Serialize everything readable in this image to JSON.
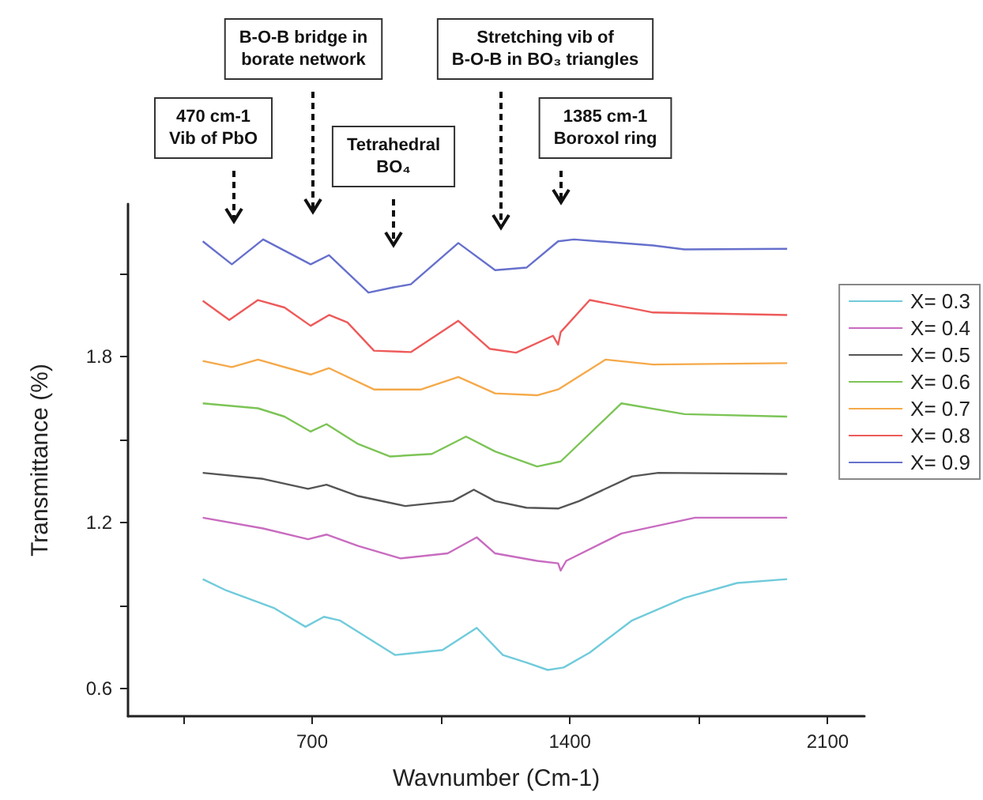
{
  "chart_data": {
    "type": "line",
    "xlabel": "Wavnumber (Cm-1)",
    "ylabel": "Transmittance (%)",
    "xlim": [
      200,
      2200
    ],
    "xticks": [
      {
        "value": 350,
        "label": null
      },
      700,
      {
        "value": 1050,
        "label": null
      },
      1400,
      {
        "value": 1750,
        "label": null
      },
      2100
    ],
    "ylim": [
      0.5,
      2.35
    ],
    "yticks": [
      0.6,
      {
        "value": 0.9,
        "label": null
      },
      1.2,
      {
        "value": 1.5,
        "label": null
      },
      1.8,
      {
        "value": 2.1,
        "label": null
      }
    ],
    "grid": false,
    "legend": "right",
    "marker": "none",
    "line_style": "solid",
    "series": [
      {
        "name": "X= 0.3",
        "color": "#70cbdb",
        "x": [
          403,
          467,
          596,
          682,
          732,
          775,
          925,
          1054,
          1147,
          1218,
          1282,
          1340,
          1383,
          1454,
          1569,
          1711,
          1854,
          1990
        ],
        "values": [
          0.995,
          0.954,
          0.891,
          0.823,
          0.859,
          0.846,
          0.721,
          0.739,
          0.819,
          0.721,
          0.694,
          0.667,
          0.676,
          0.73,
          0.846,
          0.927,
          0.981,
          0.995
        ]
      },
      {
        "name": "X= 0.4",
        "color": "#c86cc0",
        "x": [
          403,
          567,
          689,
          739,
          825,
          940,
          1068,
          1147,
          1197,
          1311,
          1368,
          1375,
          1390,
          1540,
          1740,
          1990
        ],
        "values": [
          1.217,
          1.178,
          1.139,
          1.156,
          1.115,
          1.07,
          1.088,
          1.146,
          1.088,
          1.061,
          1.052,
          1.026,
          1.061,
          1.16,
          1.217,
          1.217
        ]
      },
      {
        "name": "X= 0.5",
        "color": "#555555",
        "x": [
          403,
          567,
          689,
          739,
          825,
          953,
          1082,
          1139,
          1197,
          1282,
          1368,
          1425,
          1569,
          1640,
          1990
        ],
        "values": [
          1.379,
          1.357,
          1.321,
          1.336,
          1.295,
          1.259,
          1.277,
          1.318,
          1.277,
          1.253,
          1.25,
          1.277,
          1.366,
          1.379,
          1.375
        ]
      },
      {
        "name": "X= 0.6",
        "color": "#7cc456",
        "x": [
          403,
          553,
          625,
          696,
          739,
          825,
          911,
          1025,
          1118,
          1197,
          1311,
          1375,
          1540,
          1711,
          1990
        ],
        "values": [
          1.63,
          1.612,
          1.582,
          1.528,
          1.555,
          1.483,
          1.438,
          1.447,
          1.51,
          1.456,
          1.402,
          1.42,
          1.63,
          1.591,
          1.582
        ]
      },
      {
        "name": "X= 0.7",
        "color": "#f5a94a",
        "x": [
          403,
          482,
          553,
          696,
          746,
          868,
          996,
          1097,
          1197,
          1311,
          1368,
          1497,
          1626,
          1990
        ],
        "values": [
          1.783,
          1.761,
          1.788,
          1.734,
          1.757,
          1.68,
          1.68,
          1.725,
          1.666,
          1.659,
          1.68,
          1.788,
          1.77,
          1.775
        ]
      },
      {
        "name": "X= 0.8",
        "color": "#ee5a5a",
        "x": [
          403,
          475,
          553,
          625,
          696,
          746,
          796,
          868,
          968,
          1097,
          1182,
          1254,
          1354,
          1368,
          1375,
          1454,
          1626,
          1990
        ],
        "values": [
          2.0,
          1.931,
          2.003,
          1.976,
          1.91,
          1.949,
          1.922,
          1.82,
          1.815,
          1.928,
          1.827,
          1.813,
          1.874,
          1.842,
          1.887,
          2.003,
          1.958,
          1.949
        ]
      },
      {
        "name": "X= 0.9",
        "color": "#6670cc",
        "x": [
          403,
          482,
          567,
          696,
          746,
          853,
          918,
          968,
          1097,
          1197,
          1282,
          1368,
          1411,
          1626,
          1711,
          1990
        ],
        "values": [
          2.215,
          2.132,
          2.222,
          2.132,
          2.165,
          2.03,
          2.048,
          2.06,
          2.209,
          2.111,
          2.12,
          2.215,
          2.222,
          2.2,
          2.186,
          2.188
        ]
      }
    ],
    "annotations": [
      "470 cm-1\nVib of PbO",
      "B-O-B bridge in\nborate network",
      "Tetrahedral\nBO₄",
      "Stretching vib of\nB-O-B in BO₃ triangles",
      "1385 cm-1\nBoroxol ring"
    ]
  }
}
